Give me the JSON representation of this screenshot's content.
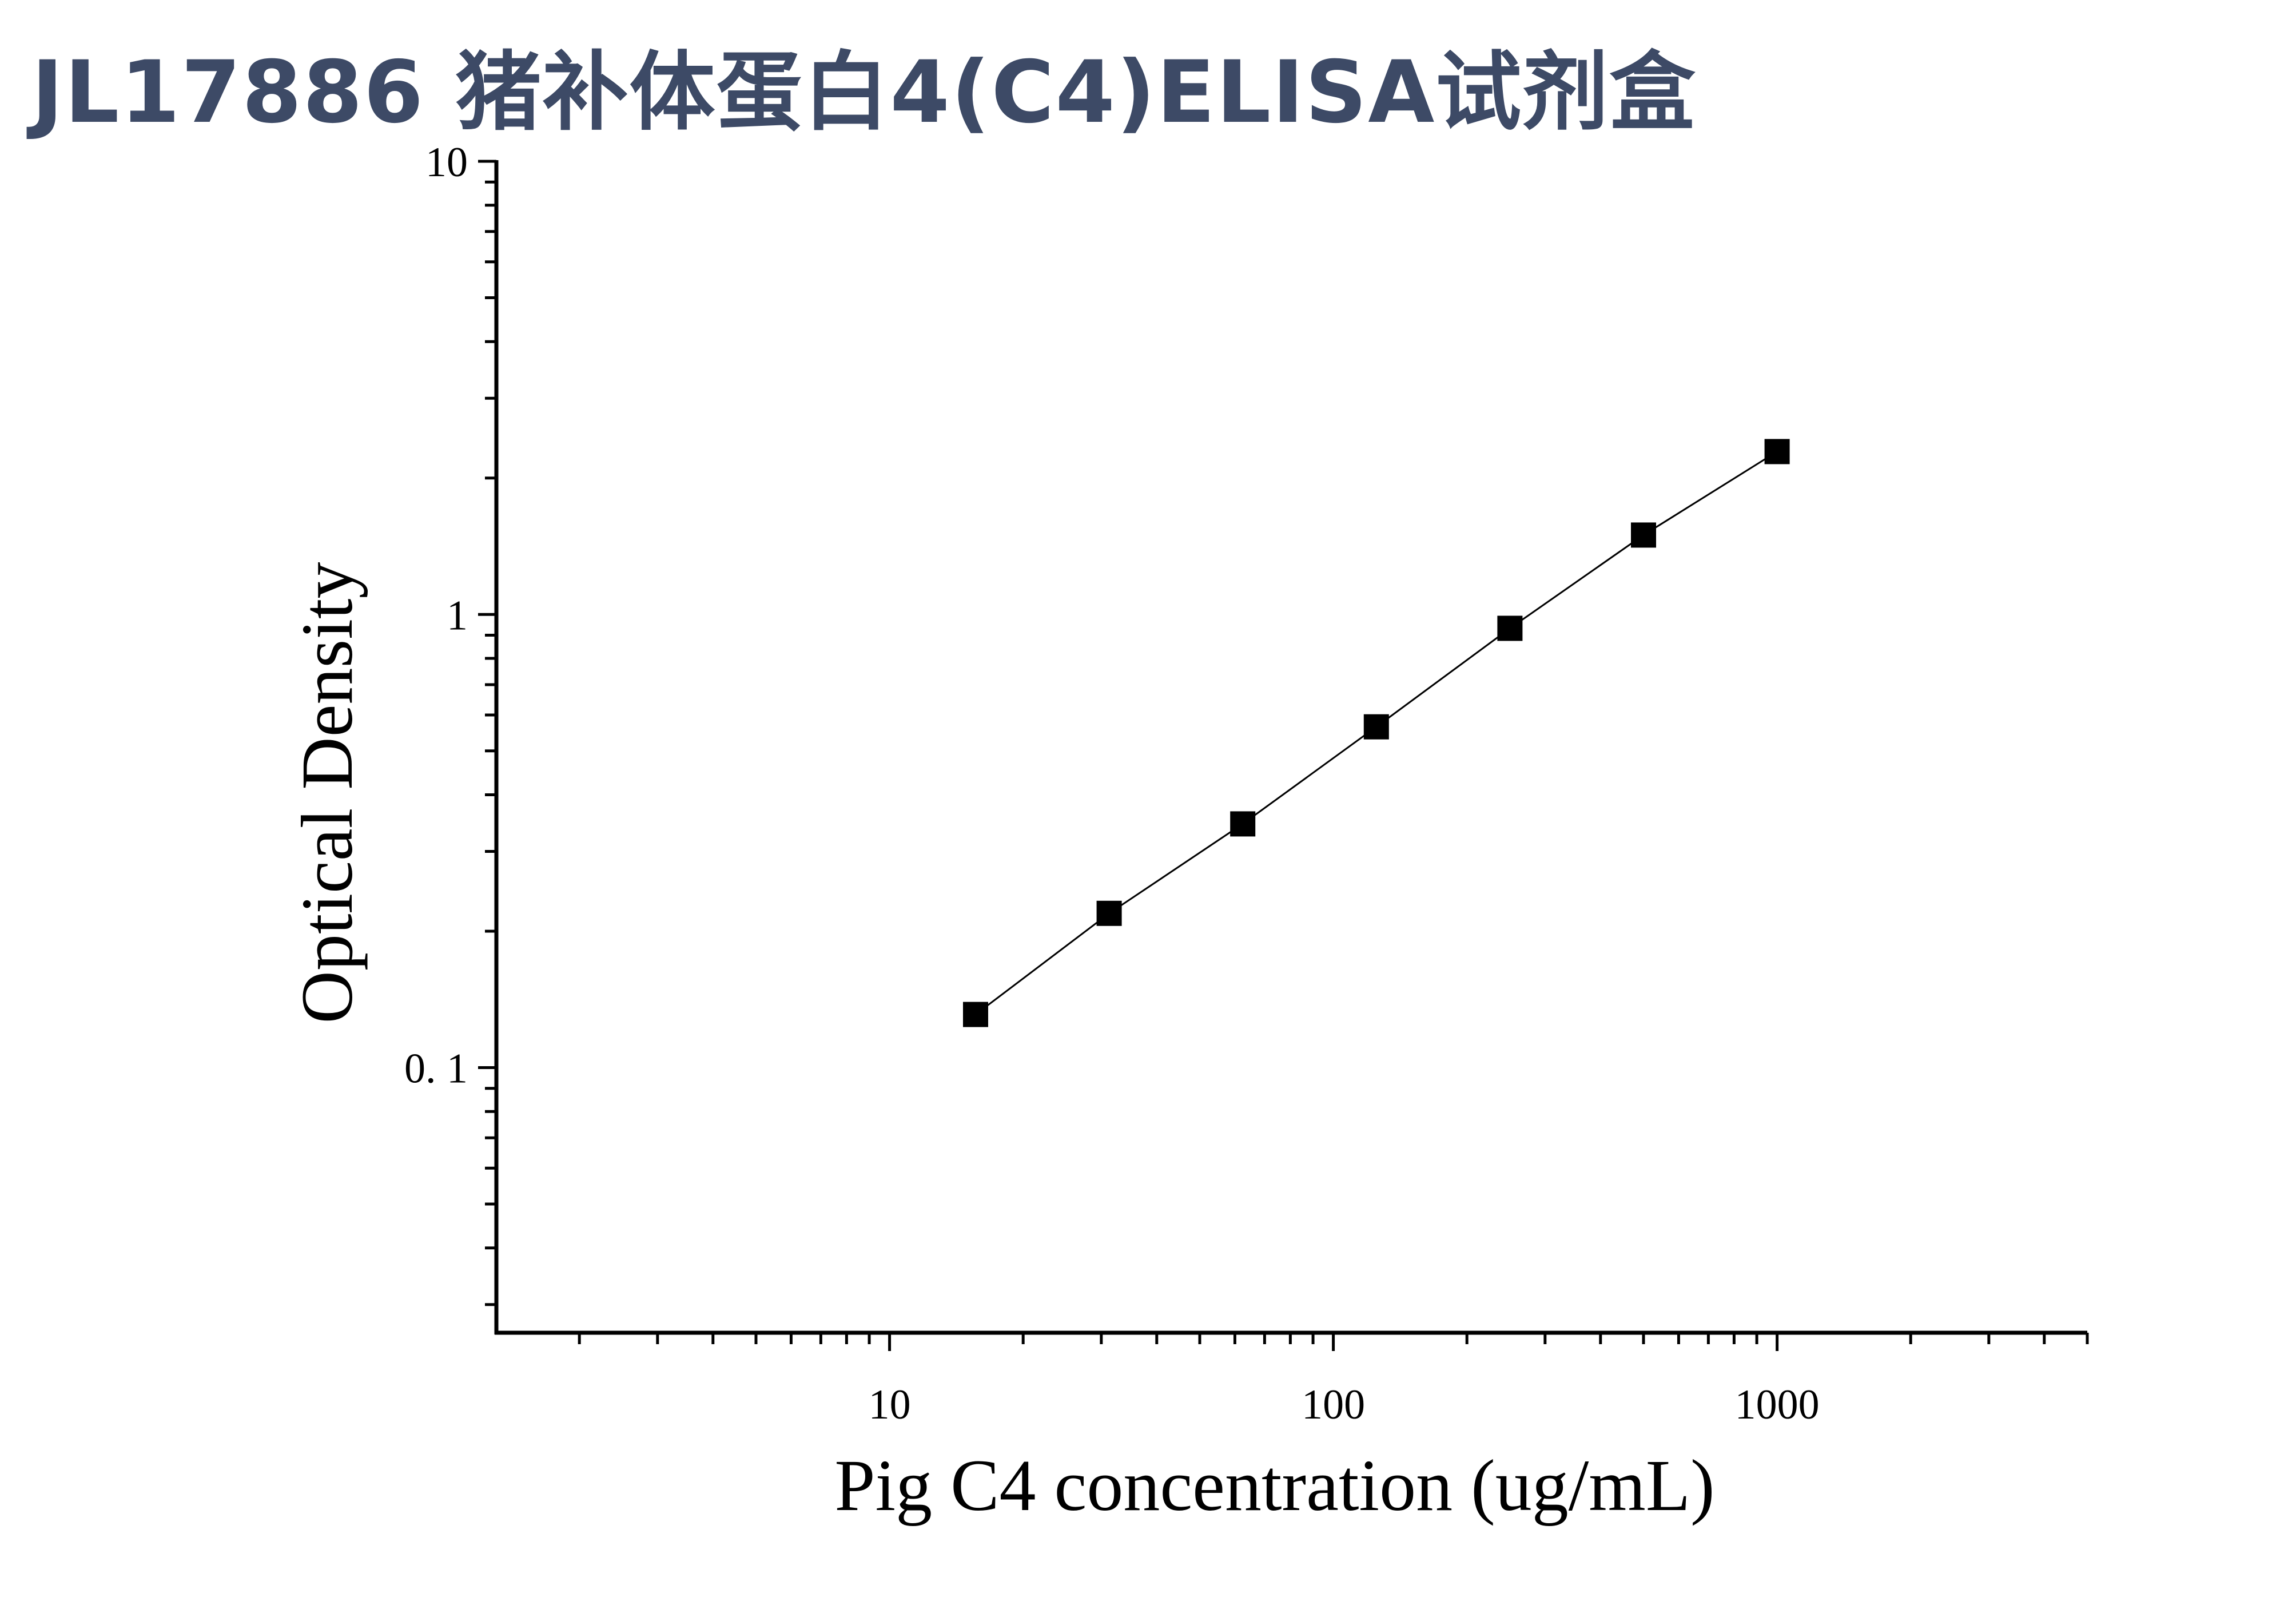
{
  "title": "JL17886 猪补体蛋白4(C4)ELISA试剂盒",
  "chart_data": {
    "type": "scatter",
    "xlabel": "Pig C4 concentration (ug/mL)",
    "ylabel": "Optical Density",
    "xscale": "log",
    "yscale": "log",
    "xlim": [
      1.3,
      5000
    ],
    "ylim": [
      0.026,
      10
    ],
    "x_ticks": [
      {
        "value": 10,
        "label": "10"
      },
      {
        "value": 100,
        "label": "100"
      },
      {
        "value": 1000,
        "label": "1000"
      }
    ],
    "y_ticks": [
      {
        "value": 0.1,
        "label": "0. 1"
      },
      {
        "value": 1,
        "label": "1"
      },
      {
        "value": 10,
        "label": "10"
      }
    ],
    "series": [
      {
        "x": [
          15.625,
          31.25,
          62.5,
          125,
          250,
          500,
          1000
        ],
        "y": [
          0.131,
          0.219,
          0.345,
          0.565,
          0.932,
          1.497,
          2.288
        ],
        "marker": "square",
        "line": true,
        "color": "#000000"
      }
    ],
    "grid": false,
    "legend": "none"
  }
}
